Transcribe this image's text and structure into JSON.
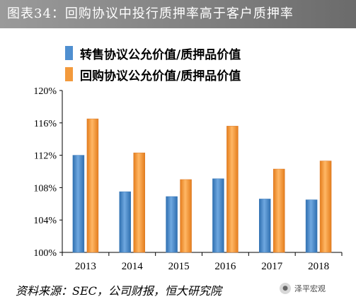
{
  "title": "图表34：回购协议中投行质押率高于客户质押率",
  "source": "资料来源：SEC，公司财报，恒大研究院",
  "watermark": "泽平宏观",
  "chart_data": {
    "type": "bar",
    "categories": [
      "2013",
      "2014",
      "2015",
      "2016",
      "2017",
      "2018"
    ],
    "series": [
      {
        "name": "转售协议公允价值/质押品价值",
        "values": [
          112.0,
          107.5,
          106.9,
          109.1,
          106.6,
          106.5
        ],
        "color": "#4f8fd0"
      },
      {
        "name": "回购协议公允价值/质押品价值",
        "values": [
          116.5,
          112.3,
          109.0,
          115.6,
          110.3,
          111.3
        ],
        "color": "#f39a3c"
      }
    ],
    "yticks": [
      "100%",
      "104%",
      "108%",
      "112%",
      "116%",
      "120%"
    ],
    "ylim": [
      100,
      120
    ],
    "grid": false,
    "legend": "top-left"
  }
}
